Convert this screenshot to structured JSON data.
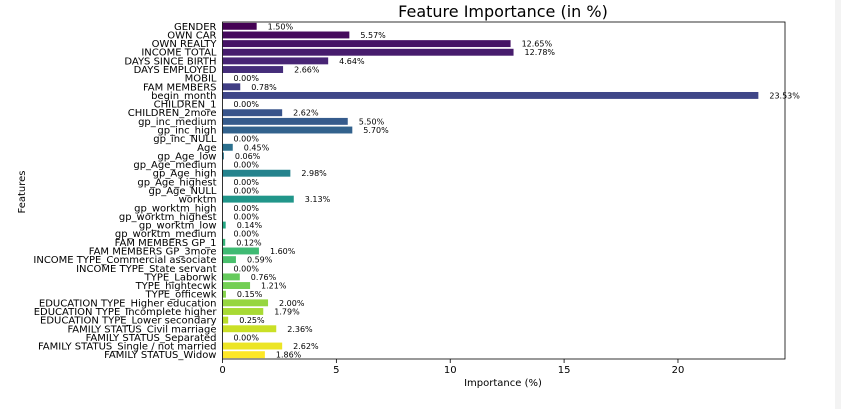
{
  "chart_data": {
    "type": "bar",
    "orientation": "horizontal",
    "title": "Feature Importance (in %)",
    "xlabel": "Importance (%)",
    "ylabel": "Features",
    "xlim": [
      0,
      24.7
    ],
    "xticks": [
      0,
      5,
      10,
      15,
      20
    ],
    "grid": false,
    "legend": "none",
    "colormap": "viridis",
    "categories": [
      "GENDER",
      "OWN CAR",
      "OWN REALTY",
      "INCOME TOTAL",
      "DAYS SINCE BIRTH",
      "DAYS EMPLOYED",
      "MOBIL",
      "FAM MEMBERS",
      "begin_month",
      "CHILDREN_1",
      "CHILDREN_2more",
      "gp_inc_medium",
      "gp_inc_high",
      "gp_inc_NULL",
      "Age",
      "gp_Age_low",
      "gp_Age_medium",
      "gp_Age_high",
      "gp_Age_highest",
      "gp_Age_NULL",
      "worktm",
      "gp_worktm_high",
      "gp_worktm_highest",
      "gp_worktm_low",
      "gp_worktm_medium",
      "FAM MEMBERS GP_1",
      "FAM MEMBERS GP_3more",
      "INCOME TYPE_Commercial associate",
      "INCOME TYPE_State servant",
      "TYPE_Laborwk",
      "TYPE_hightecwk",
      "TYPE_officewk",
      "EDUCATION TYPE_Higher education",
      "EDUCATION TYPE_Incomplete higher",
      "EDUCATION TYPE_Lower secondary",
      "FAMILY STATUS_Civil marriage",
      "FAMILY STATUS_Separated",
      "FAMILY STATUS_Single / not married",
      "FAMILY STATUS_Widow"
    ],
    "values": [
      1.5,
      5.57,
      12.65,
      12.78,
      4.64,
      2.66,
      0.0,
      0.78,
      23.53,
      0.0,
      2.62,
      5.5,
      5.7,
      0.0,
      0.45,
      0.06,
      0.0,
      2.98,
      0.0,
      0.0,
      3.13,
      0.0,
      0.0,
      0.14,
      0.0,
      0.12,
      1.6,
      0.59,
      0.0,
      0.76,
      1.21,
      0.15,
      2.0,
      1.79,
      0.25,
      2.36,
      0.0,
      2.62,
      1.86
    ],
    "value_labels": [
      "1.50%",
      "5.57%",
      "12.65%",
      "12.78%",
      "4.64%",
      "2.66%",
      "0.00%",
      "0.78%",
      "23.53%",
      "0.00%",
      "2.62%",
      "5.50%",
      "5.70%",
      "0.00%",
      "0.45%",
      "0.06%",
      "0.00%",
      "2.98%",
      "0.00%",
      "0.00%",
      "3.13%",
      "0.00%",
      "0.00%",
      "0.14%",
      "0.00%",
      "0.12%",
      "1.60%",
      "0.59%",
      "0.00%",
      "0.76%",
      "1.21%",
      "0.15%",
      "2.00%",
      "1.79%",
      "0.25%",
      "2.36%",
      "0.00%",
      "2.62%",
      "1.86%"
    ]
  }
}
